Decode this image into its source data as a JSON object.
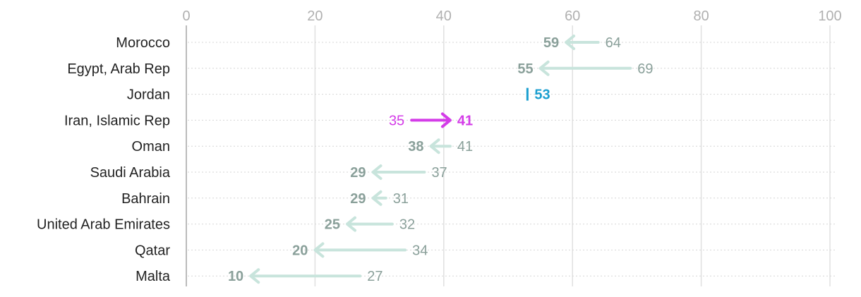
{
  "chart_data": {
    "type": "arrow",
    "xlim": [
      0,
      100
    ],
    "x_ticks": [
      "0",
      "20",
      "40",
      "60",
      "80",
      "100"
    ],
    "grid": true,
    "colors": {
      "decrease_arrow": "#c8e4dc",
      "decrease_text": "#8aa09a",
      "increase": "#d43ce8",
      "unchanged": "#1b9fd0"
    },
    "rows": [
      {
        "label": "Morocco",
        "start": 64,
        "end": 59
      },
      {
        "label": "Egypt, Arab Rep",
        "start": 69,
        "end": 55
      },
      {
        "label": "Jordan",
        "start": 53,
        "end": 53
      },
      {
        "label": "Iran, Islamic Rep",
        "start": 35,
        "end": 41
      },
      {
        "label": "Oman",
        "start": 41,
        "end": 38
      },
      {
        "label": "Saudi Arabia",
        "start": 37,
        "end": 29
      },
      {
        "label": "Bahrain",
        "start": 31,
        "end": 29
      },
      {
        "label": "United Arab Emirates",
        "start": 32,
        "end": 25
      },
      {
        "label": "Qatar",
        "start": 34,
        "end": 20
      },
      {
        "label": "Malta",
        "start": 27,
        "end": 10
      }
    ]
  }
}
